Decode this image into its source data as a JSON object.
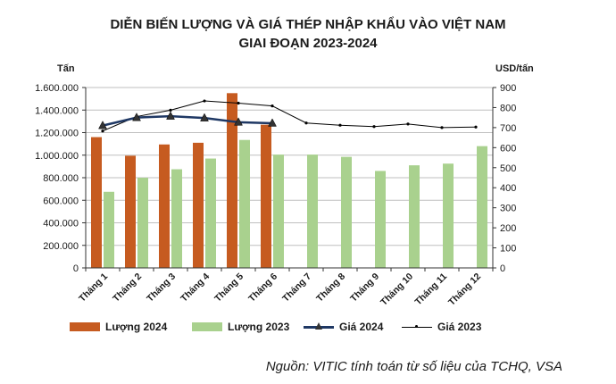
{
  "chart_data": {
    "type": "bar+line",
    "title": "DIỄN BIẾN LƯỢNG VÀ GIÁ THÉP NHẬP KHẨU VÀO VIỆT NAM",
    "subtitle": "GIAI ĐOẠN 2023-2024",
    "ylabel_left": "Tấn",
    "ylabel_right": "USD/tấn",
    "categories": [
      "Tháng 1",
      "Tháng 2",
      "Tháng 3",
      "Tháng 4",
      "Tháng 5",
      "Tháng 6",
      "Tháng 7",
      "Tháng 8",
      "Tháng 9",
      "Tháng 10",
      "Tháng 11",
      "Tháng 12"
    ],
    "left_axis": {
      "ylim": [
        0,
        1600000
      ],
      "ticks": [
        "0",
        "200.000",
        "400.000",
        "600.000",
        "800.000",
        "1.000.000",
        "1.200.000",
        "1.400.000",
        "1.600.000"
      ]
    },
    "right_axis": {
      "ylim": [
        0,
        900
      ],
      "ticks": [
        "0",
        "100",
        "200",
        "300",
        "400",
        "500",
        "600",
        "700",
        "800",
        "900"
      ]
    },
    "series": [
      {
        "name": "Lượng 2024",
        "type": "bar",
        "axis": "left",
        "color": "#C65B20",
        "values": [
          1160000,
          995000,
          1095000,
          1110000,
          1550000,
          1270000,
          null,
          null,
          null,
          null,
          null,
          null
        ]
      },
      {
        "name": "Lượng 2023",
        "type": "bar",
        "axis": "left",
        "color": "#A9D18E",
        "values": [
          675000,
          800000,
          875000,
          970000,
          1135000,
          1005000,
          1005000,
          985000,
          860000,
          910000,
          925000,
          1080000
        ]
      },
      {
        "name": "Giá 2024",
        "type": "line",
        "axis": "right",
        "color": "#1F3864",
        "marker": "triangle",
        "values": [
          710,
          750,
          757,
          748,
          727,
          722,
          null,
          null,
          null,
          null,
          null,
          null
        ]
      },
      {
        "name": "Giá 2023",
        "type": "line",
        "axis": "right",
        "color": "#000000",
        "marker": "dot",
        "values": [
          683,
          755,
          787,
          833,
          822,
          808,
          723,
          712,
          705,
          718,
          700,
          703
        ]
      }
    ],
    "legend": [
      "Lượng 2024",
      "Lượng 2023",
      "Giá 2024",
      "Giá 2023"
    ],
    "gridlines": true
  },
  "source": "Nguồn: VITIC tính toán từ số liệu của TCHQ, VSA"
}
